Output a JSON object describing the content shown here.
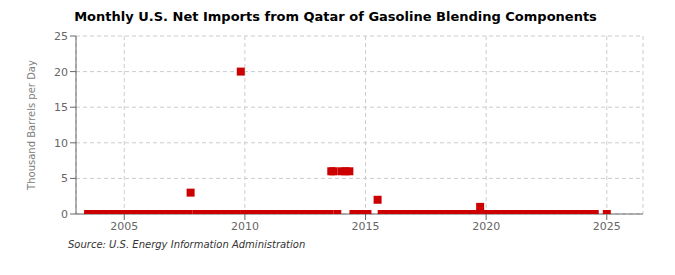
{
  "chart_data": {
    "type": "scatter",
    "title": "Monthly U.S. Net Imports from Qatar of Gasoline Blending Components",
    "y_label": "Thousand Barrels per Day",
    "annotations": [
      "Source: U.S. Energy Information Administration"
    ],
    "color": "#cc0000",
    "marker": "square",
    "grid": true,
    "xlim": [
      2003.0,
      2026.5
    ],
    "ylim": [
      0,
      25
    ],
    "xticks": [
      2005,
      2010,
      2015,
      2020,
      2025
    ],
    "yticks": [
      0,
      5,
      10,
      15,
      20,
      25
    ],
    "x": [
      2003.5,
      2003.75,
      2004.0,
      2004.17,
      2004.33,
      2004.5,
      2004.67,
      2004.83,
      2005.0,
      2005.08,
      2005.17,
      2005.25,
      2005.33,
      2005.5,
      2005.67,
      2005.83,
      2006.0,
      2006.17,
      2006.33,
      2006.5,
      2006.67,
      2006.83,
      2007.0,
      2007.17,
      2007.33,
      2007.5,
      2007.67,
      2007.75,
      2008.0,
      2008.17,
      2008.33,
      2008.5,
      2008.67,
      2008.83,
      2009.0,
      2009.17,
      2009.33,
      2009.5,
      2009.67,
      2009.83,
      2010.0,
      2010.08,
      2010.17,
      2010.25,
      2010.33,
      2010.5,
      2010.67,
      2010.83,
      2011.0,
      2011.08,
      2011.17,
      2011.25,
      2011.33,
      2011.5,
      2011.67,
      2011.83,
      2012.0,
      2012.08,
      2012.17,
      2012.25,
      2012.33,
      2012.5,
      2012.67,
      2012.83,
      2013.0,
      2013.17,
      2013.33,
      2013.5,
      2013.58,
      2013.67,
      2013.83,
      2014.0,
      2014.17,
      2014.33,
      2014.5,
      2014.67,
      2014.83,
      2015.0,
      2015.08,
      2015.5,
      2015.67,
      2015.83,
      2016.0,
      2016.17,
      2016.33,
      2016.5,
      2016.67,
      2016.83,
      2017.0,
      2017.17,
      2017.33,
      2017.5,
      2017.67,
      2017.83,
      2018.0,
      2018.17,
      2018.33,
      2018.5,
      2018.67,
      2018.83,
      2019.0,
      2019.17,
      2019.33,
      2019.5,
      2019.67,
      2019.75,
      2019.92,
      2020.0,
      2020.17,
      2020.33,
      2020.5,
      2020.67,
      2020.83,
      2021.0,
      2021.17,
      2021.33,
      2021.5,
      2021.67,
      2021.83,
      2022.0,
      2022.08,
      2022.17,
      2022.25,
      2022.33,
      2022.5,
      2022.67,
      2022.83,
      2023.0,
      2023.17,
      2023.33,
      2023.5,
      2023.67,
      2023.83,
      2024.0,
      2024.17,
      2024.33,
      2024.5,
      2025.0
    ],
    "values": [
      0,
      0,
      0,
      0,
      0,
      0,
      0,
      0,
      0,
      0,
      0,
      0,
      0,
      0,
      0,
      0,
      0,
      0,
      0,
      0,
      0,
      0,
      0,
      0,
      0,
      0,
      0,
      3,
      0,
      0,
      0,
      0,
      0,
      0,
      0,
      0,
      0,
      0,
      0,
      20,
      0,
      0,
      0,
      0,
      0,
      0,
      0,
      0,
      0,
      0,
      0,
      0,
      0,
      0,
      0,
      0,
      0,
      0,
      0,
      0,
      0,
      0,
      0,
      0,
      0,
      0,
      0,
      0,
      6,
      6,
      0,
      6,
      6,
      6,
      0,
      0,
      0,
      0,
      0,
      2,
      0,
      0,
      0,
      0,
      0,
      0,
      0,
      0,
      0,
      0,
      0,
      0,
      0,
      0,
      0,
      0,
      0,
      0,
      0,
      0,
      0,
      0,
      0,
      0,
      0,
      1,
      0,
      0,
      0,
      0,
      0,
      0,
      0,
      0,
      0,
      0,
      0,
      0,
      0,
      0,
      0,
      0,
      0,
      0,
      0,
      0,
      0,
      0,
      0,
      0,
      0,
      0,
      0,
      0,
      0,
      0,
      0,
      0
    ]
  }
}
